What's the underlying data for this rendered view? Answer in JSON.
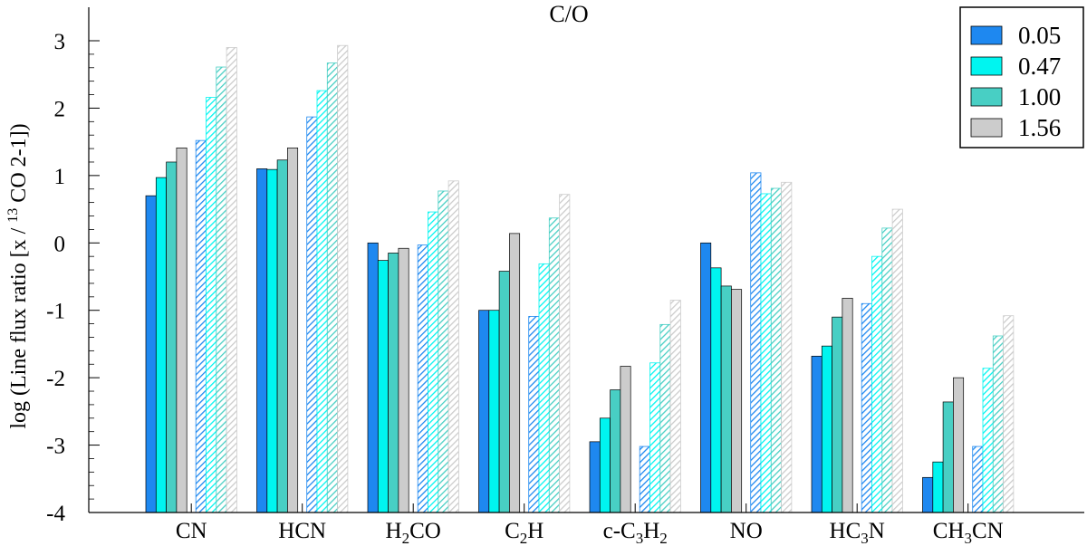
{
  "chart_data": {
    "type": "bar",
    "title": "C/O",
    "ylabel_parts": {
      "prefix": "log (Line flux ratio [x / ",
      "sup": "13",
      "suffix": " CO 2-1])"
    },
    "ylim": [
      -4,
      3
    ],
    "yticks": [
      {
        "value": -4,
        "label": "-4"
      },
      {
        "value": -3,
        "label": "-3"
      },
      {
        "value": -2,
        "label": "-2"
      },
      {
        "value": -1,
        "label": "-1"
      },
      {
        "value": 0,
        "label": "0"
      },
      {
        "value": 1,
        "label": "1"
      },
      {
        "value": 2,
        "label": "2"
      },
      {
        "value": 3,
        "label": "3"
      }
    ],
    "categories": [
      {
        "parts": [
          {
            "t": "CN"
          }
        ]
      },
      {
        "parts": [
          {
            "t": "HCN"
          }
        ]
      },
      {
        "parts": [
          {
            "t": "H"
          },
          {
            "t": "2",
            "sub": true
          },
          {
            "t": "CO"
          }
        ]
      },
      {
        "parts": [
          {
            "t": "C"
          },
          {
            "t": "2",
            "sub": true
          },
          {
            "t": "H"
          }
        ]
      },
      {
        "parts": [
          {
            "t": "c-C"
          },
          {
            "t": "3",
            "sub": true
          },
          {
            "t": "H"
          },
          {
            "t": "2",
            "sub": true
          }
        ]
      },
      {
        "parts": [
          {
            "t": "NO"
          }
        ]
      },
      {
        "parts": [
          {
            "t": "HC"
          },
          {
            "t": "3",
            "sub": true
          },
          {
            "t": "N"
          }
        ]
      },
      {
        "parts": [
          {
            "t": "CH"
          },
          {
            "t": "3",
            "sub": true
          },
          {
            "t": "CN"
          }
        ]
      }
    ],
    "legend": {
      "position": "top-right",
      "entries": [
        {
          "label": "0.05",
          "color": "#1e88f0"
        },
        {
          "label": "0.47",
          "color": "#00f5f0"
        },
        {
          "label": "1.00",
          "color": "#48cfc4"
        },
        {
          "label": "1.56",
          "color": "#cccccc"
        }
      ]
    },
    "series": [
      {
        "name": "0.05",
        "group": "solid",
        "values": [
          0.7,
          1.1,
          0.0,
          -1.0,
          -2.95,
          0.0,
          -1.68,
          -3.48
        ]
      },
      {
        "name": "0.47",
        "group": "solid",
        "values": [
          0.97,
          1.09,
          -0.26,
          -1.0,
          -2.6,
          -0.37,
          -1.53,
          -3.25
        ]
      },
      {
        "name": "1.00",
        "group": "solid",
        "values": [
          1.2,
          1.23,
          -0.15,
          -0.42,
          -2.18,
          -0.64,
          -1.1,
          -2.36
        ]
      },
      {
        "name": "1.56",
        "group": "solid",
        "values": [
          1.41,
          1.41,
          -0.08,
          0.14,
          -1.83,
          -0.69,
          -0.82,
          -2.0
        ]
      },
      {
        "name": "0.05",
        "group": "hatched",
        "values": [
          1.52,
          1.87,
          -0.03,
          -1.09,
          -3.02,
          1.04,
          -0.9,
          -3.02
        ]
      },
      {
        "name": "0.47",
        "group": "hatched",
        "values": [
          2.16,
          2.26,
          0.46,
          -0.31,
          -1.78,
          0.73,
          -0.2,
          -1.86
        ]
      },
      {
        "name": "1.00",
        "group": "hatched",
        "values": [
          2.61,
          2.67,
          0.77,
          0.37,
          -1.21,
          0.81,
          0.22,
          -1.38
        ]
      },
      {
        "name": "1.56",
        "group": "hatched",
        "values": [
          2.9,
          2.93,
          0.92,
          0.72,
          -0.85,
          0.9,
          0.5,
          -1.08
        ]
      }
    ]
  }
}
